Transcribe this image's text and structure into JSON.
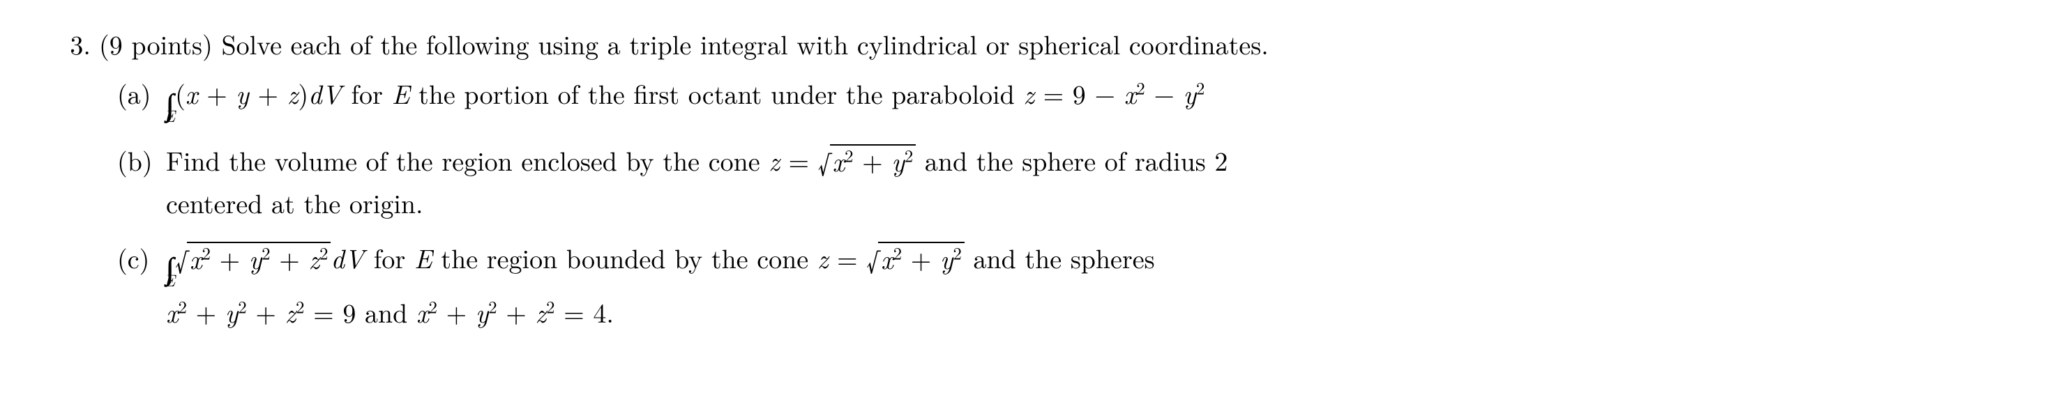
{
  "problem": {
    "number": "3.",
    "points_prefix": "(9 points)",
    "stem": "Solve each of the following using a triple integral with cylindrical or spherical coordinates."
  },
  "parts": {
    "a": {
      "label": "(a)",
      "iiint_sub": "E",
      "integrand_open": "(",
      "integrand_x": "x",
      "plus1": " + ",
      "integrand_y": "y",
      "plus2": " + ",
      "integrand_z": "z",
      "integrand_close": ")",
      "dv": "dV",
      "mid1": " for ",
      "E": "E",
      "mid2": " the portion of the first octant under the paraboloid ",
      "eq_z": "z",
      "eq": " = ",
      "nine": "9",
      "minus1": " − ",
      "x": "x",
      "sq1": "2",
      "minus2": " − ",
      "y": "y",
      "sq2": "2"
    },
    "b": {
      "label": "(b)",
      "t1": "Find the volume of the region enclosed by the cone ",
      "z": "z",
      "eq": " = ",
      "rad_x": "x",
      "rad_sq1": "2",
      "rad_plus": " + ",
      "rad_y": "y",
      "rad_sq2": "2",
      "t2": " and the sphere of radius 2",
      "t3": "centered at the origin."
    },
    "c": {
      "label": "(c)",
      "iiint_sub": "E",
      "rad1_x": "x",
      "rad1_sq1": "2",
      "rad1_plus1": " + ",
      "rad1_y": "y",
      "rad1_sq2": "2",
      "rad1_plus2": " + ",
      "rad1_z": "z",
      "rad1_sq3": "2",
      "dv": "dV",
      "t1": " for ",
      "E": "E",
      "t2": " the region bounded by the cone ",
      "cz": "z",
      "ceq": " = ",
      "rad2_x": "x",
      "rad2_sq1": "2",
      "rad2_plus": " + ",
      "rad2_y": "y",
      "rad2_sq2": "2",
      "t3": " and the spheres",
      "l2_x": "x",
      "l2_sq1": "2",
      "l2_p1": " + ",
      "l2_y": "y",
      "l2_sq2": "2",
      "l2_p2": " + ",
      "l2_z": "z",
      "l2_sq3": "2",
      "l2_eq1": " = ",
      "l2_9": "9",
      "l2_and": " and ",
      "l2_x2": "x",
      "l2_sq4": "2",
      "l2_p3": " + ",
      "l2_y2": "y",
      "l2_sq5": "2",
      "l2_p4": " + ",
      "l2_z2": "z",
      "l2_sq6": "2",
      "l2_eq2": " = ",
      "l2_4": "4.",
      "surd": "√",
      "iiint_sym": "∫∫∫"
    },
    "shared": {
      "surd": "√",
      "iiint_sym": "∫∫∫"
    }
  }
}
